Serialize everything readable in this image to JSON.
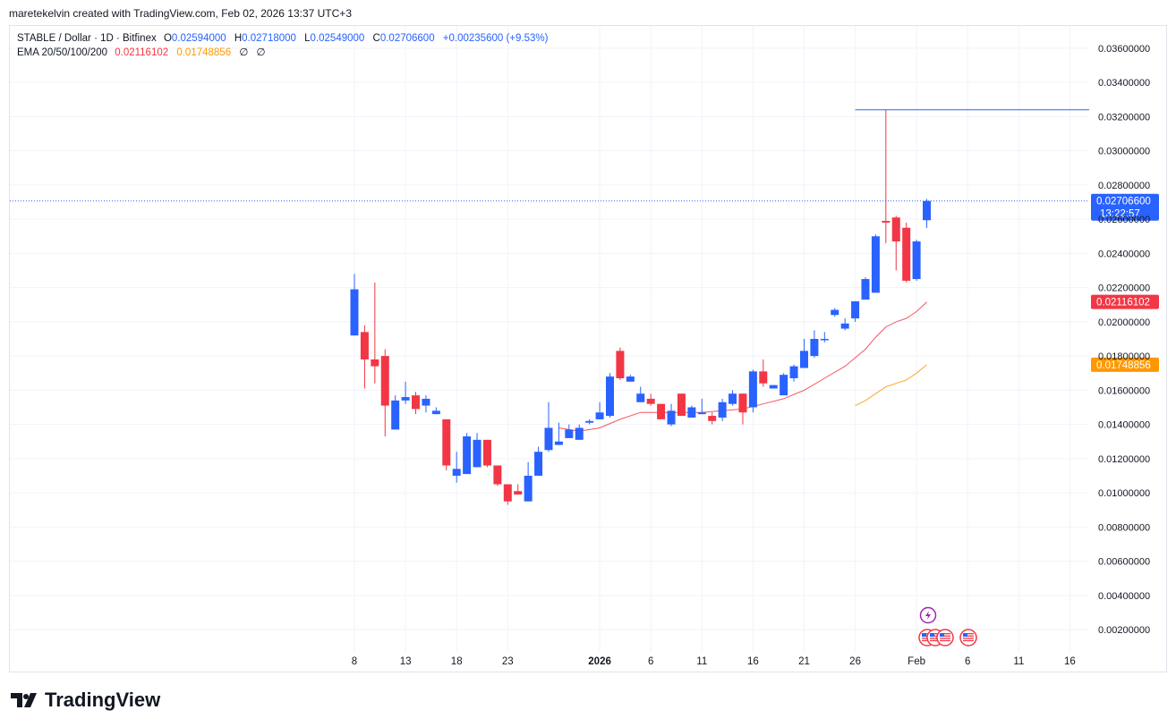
{
  "attribution": "maretekelvin created with TradingView.com, Feb 02, 2026 13:37 UTC+3",
  "legend": {
    "symbol": "STABLE / Dollar · 1D · Bitfinex",
    "o_label": "O",
    "o_value": "0.02594000",
    "h_label": "H",
    "h_value": "0.02718000",
    "l_label": "L",
    "l_value": "0.02549000",
    "c_label": "C",
    "c_value": "0.02706600",
    "change": "+0.00235600 (+9.53%)",
    "ema_label": "EMA 20/50/100/200",
    "ema20": "0.02116102",
    "ema50": "0.01748856",
    "ema100": "∅",
    "ema200": "∅"
  },
  "brand": {
    "name": "TradingView"
  },
  "colors": {
    "up": "#2962ff",
    "down": "#f23645",
    "ema20": "#f23645",
    "ema50": "#ff9800",
    "hline": "#2962ff",
    "grid": "#f0f3fa"
  },
  "price_label": {
    "value": "0.02706600",
    "countdown": "13:22:57"
  },
  "icons": [
    "lightning-event-icon",
    "us-flag-event-icon"
  ],
  "chart_data": {
    "type": "candlestick",
    "y_axis_ticks": [
      "0.03600000",
      "0.03400000",
      "0.03200000",
      "0.03000000",
      "0.02800000",
      "0.02600000",
      "0.02400000",
      "0.02200000",
      "0.02000000",
      "0.01800000",
      "0.01600000",
      "0.01400000",
      "0.01200000",
      "0.01000000",
      "0.00800000",
      "0.00600000",
      "0.00400000",
      "0.00200000"
    ],
    "ylim": [
      0.0007,
      0.0373
    ],
    "x_axis_ticks": [
      {
        "label": "8",
        "date": "2025-12-08"
      },
      {
        "label": "13",
        "date": "2025-12-13"
      },
      {
        "label": "18",
        "date": "2025-12-18"
      },
      {
        "label": "23",
        "date": "2025-12-23"
      },
      {
        "label": "2026",
        "date": "2026-01-01"
      },
      {
        "label": "6",
        "date": "2026-01-06"
      },
      {
        "label": "11",
        "date": "2026-01-11"
      },
      {
        "label": "16",
        "date": "2026-01-16"
      },
      {
        "label": "21",
        "date": "2026-01-21"
      },
      {
        "label": "26",
        "date": "2026-01-26"
      },
      {
        "label": "Feb",
        "date": "2026-02-01"
      },
      {
        "label": "6",
        "date": "2026-02-06"
      },
      {
        "label": "11",
        "date": "2026-02-11"
      },
      {
        "label": "16",
        "date": "2026-02-16"
      }
    ],
    "candles": [
      {
        "date": "2025-12-08",
        "o": 0.0192,
        "h": 0.0228,
        "l": 0.0192,
        "c": 0.0219
      },
      {
        "date": "2025-12-09",
        "o": 0.0194,
        "h": 0.0198,
        "l": 0.0161,
        "c": 0.0178
      },
      {
        "date": "2025-12-10",
        "o": 0.0178,
        "h": 0.0223,
        "l": 0.0164,
        "c": 0.0174
      },
      {
        "date": "2025-12-11",
        "o": 0.018,
        "h": 0.0184,
        "l": 0.0133,
        "c": 0.0151
      },
      {
        "date": "2025-12-12",
        "o": 0.0137,
        "h": 0.0157,
        "l": 0.0137,
        "c": 0.0154
      },
      {
        "date": "2025-12-13",
        "o": 0.0154,
        "h": 0.0165,
        "l": 0.0152,
        "c": 0.0156
      },
      {
        "date": "2025-12-14",
        "o": 0.0157,
        "h": 0.0159,
        "l": 0.0146,
        "c": 0.0149
      },
      {
        "date": "2025-12-15",
        "o": 0.0151,
        "h": 0.0157,
        "l": 0.0147,
        "c": 0.0155
      },
      {
        "date": "2025-12-16",
        "o": 0.0146,
        "h": 0.015,
        "l": 0.0146,
        "c": 0.0148
      },
      {
        "date": "2025-12-17",
        "o": 0.0143,
        "h": 0.0143,
        "l": 0.0113,
        "c": 0.0116
      },
      {
        "date": "2025-12-18",
        "o": 0.011,
        "h": 0.0124,
        "l": 0.0106,
        "c": 0.0114
      },
      {
        "date": "2025-12-19",
        "o": 0.0111,
        "h": 0.0135,
        "l": 0.0111,
        "c": 0.0133
      },
      {
        "date": "2025-12-20",
        "o": 0.0115,
        "h": 0.0135,
        "l": 0.0115,
        "c": 0.0131
      },
      {
        "date": "2025-12-21",
        "o": 0.0131,
        "h": 0.0131,
        "l": 0.0115,
        "c": 0.0116
      },
      {
        "date": "2025-12-22",
        "o": 0.0116,
        "h": 0.0116,
        "l": 0.0104,
        "c": 0.0105
      },
      {
        "date": "2025-12-23",
        "o": 0.0105,
        "h": 0.0105,
        "l": 0.0093,
        "c": 0.0095
      },
      {
        "date": "2025-12-24",
        "o": 0.0101,
        "h": 0.0105,
        "l": 0.01,
        "c": 0.0099
      },
      {
        "date": "2025-12-25",
        "o": 0.0095,
        "h": 0.0118,
        "l": 0.0095,
        "c": 0.011
      },
      {
        "date": "2025-12-26",
        "o": 0.011,
        "h": 0.0127,
        "l": 0.011,
        "c": 0.0124
      },
      {
        "date": "2025-12-27",
        "o": 0.0125,
        "h": 0.0153,
        "l": 0.0124,
        "c": 0.0138
      },
      {
        "date": "2025-12-28",
        "o": 0.0128,
        "h": 0.0141,
        "l": 0.0128,
        "c": 0.013
      },
      {
        "date": "2025-12-29",
        "o": 0.0132,
        "h": 0.014,
        "l": 0.0132,
        "c": 0.0137
      },
      {
        "date": "2025-12-30",
        "o": 0.0131,
        "h": 0.014,
        "l": 0.0131,
        "c": 0.0138
      },
      {
        "date": "2025-12-31",
        "o": 0.0141,
        "h": 0.0143,
        "l": 0.014,
        "c": 0.0142
      },
      {
        "date": "2026-01-01",
        "o": 0.0143,
        "h": 0.0153,
        "l": 0.0143,
        "c": 0.0147
      },
      {
        "date": "2026-01-02",
        "o": 0.0145,
        "h": 0.017,
        "l": 0.0144,
        "c": 0.0168
      },
      {
        "date": "2026-01-03",
        "o": 0.0183,
        "h": 0.0185,
        "l": 0.0166,
        "c": 0.0167
      },
      {
        "date": "2026-01-04",
        "o": 0.0165,
        "h": 0.0169,
        "l": 0.0165,
        "c": 0.0168
      },
      {
        "date": "2026-01-05",
        "o": 0.0153,
        "h": 0.0162,
        "l": 0.0153,
        "c": 0.0158
      },
      {
        "date": "2026-01-06",
        "o": 0.0155,
        "h": 0.0158,
        "l": 0.0151,
        "c": 0.0152
      },
      {
        "date": "2026-01-07",
        "o": 0.0152,
        "h": 0.0152,
        "l": 0.0143,
        "c": 0.0143
      },
      {
        "date": "2026-01-08",
        "o": 0.014,
        "h": 0.0152,
        "l": 0.0139,
        "c": 0.0148
      },
      {
        "date": "2026-01-09",
        "o": 0.0158,
        "h": 0.0158,
        "l": 0.0145,
        "c": 0.0145
      },
      {
        "date": "2026-01-10",
        "o": 0.0144,
        "h": 0.0151,
        "l": 0.0144,
        "c": 0.015
      },
      {
        "date": "2026-01-11",
        "o": 0.0146,
        "h": 0.0155,
        "l": 0.0146,
        "c": 0.0147
      },
      {
        "date": "2026-01-12",
        "o": 0.0145,
        "h": 0.0147,
        "l": 0.014,
        "c": 0.0142
      },
      {
        "date": "2026-01-13",
        "o": 0.0144,
        "h": 0.0155,
        "l": 0.0142,
        "c": 0.0153
      },
      {
        "date": "2026-01-14",
        "o": 0.0152,
        "h": 0.016,
        "l": 0.0151,
        "c": 0.0158
      },
      {
        "date": "2026-01-15",
        "o": 0.0158,
        "h": 0.0158,
        "l": 0.014,
        "c": 0.0147
      },
      {
        "date": "2026-01-16",
        "o": 0.015,
        "h": 0.0172,
        "l": 0.0147,
        "c": 0.0171
      },
      {
        "date": "2026-01-17",
        "o": 0.0171,
        "h": 0.0178,
        "l": 0.0162,
        "c": 0.0164
      },
      {
        "date": "2026-01-18",
        "o": 0.0161,
        "h": 0.0163,
        "l": 0.0161,
        "c": 0.0163
      },
      {
        "date": "2026-01-19",
        "o": 0.0157,
        "h": 0.017,
        "l": 0.0157,
        "c": 0.0169
      },
      {
        "date": "2026-01-20",
        "o": 0.0167,
        "h": 0.0175,
        "l": 0.0165,
        "c": 0.0174
      },
      {
        "date": "2026-01-21",
        "o": 0.0173,
        "h": 0.019,
        "l": 0.0173,
        "c": 0.0183
      },
      {
        "date": "2026-01-22",
        "o": 0.018,
        "h": 0.0195,
        "l": 0.0179,
        "c": 0.019
      },
      {
        "date": "2026-01-23",
        "o": 0.019,
        "h": 0.0194,
        "l": 0.0188,
        "c": 0.019
      },
      {
        "date": "2026-01-24",
        "o": 0.0204,
        "h": 0.0208,
        "l": 0.0203,
        "c": 0.0207
      },
      {
        "date": "2026-01-25",
        "o": 0.0196,
        "h": 0.0202,
        "l": 0.0195,
        "c": 0.0199
      },
      {
        "date": "2026-01-26",
        "o": 0.0202,
        "h": 0.0212,
        "l": 0.02,
        "c": 0.0212
      },
      {
        "date": "2026-01-27",
        "o": 0.0213,
        "h": 0.0226,
        "l": 0.0213,
        "c": 0.0225
      },
      {
        "date": "2026-01-28",
        "o": 0.0217,
        "h": 0.0251,
        "l": 0.0217,
        "c": 0.025
      },
      {
        "date": "2026-01-29",
        "o": 0.0259,
        "h": 0.0324,
        "l": 0.0246,
        "c": 0.0258
      },
      {
        "date": "2026-01-30",
        "o": 0.0261,
        "h": 0.0262,
        "l": 0.023,
        "c": 0.0247
      },
      {
        "date": "2026-01-31",
        "o": 0.0255,
        "h": 0.0258,
        "l": 0.0223,
        "c": 0.0224
      },
      {
        "date": "2026-02-01",
        "o": 0.0225,
        "h": 0.0248,
        "l": 0.0224,
        "c": 0.0247
      },
      {
        "date": "2026-02-02",
        "o": 0.02594,
        "h": 0.02718,
        "l": 0.02549,
        "c": 0.027066
      }
    ],
    "ema20": [
      {
        "date": "2025-12-28",
        "v": 0.0138
      },
      {
        "date": "2025-12-30",
        "v": 0.0136
      },
      {
        "date": "2026-01-01",
        "v": 0.0138
      },
      {
        "date": "2026-01-03",
        "v": 0.0143
      },
      {
        "date": "2026-01-05",
        "v": 0.0147
      },
      {
        "date": "2026-01-07",
        "v": 0.0147
      },
      {
        "date": "2026-01-09",
        "v": 0.0147
      },
      {
        "date": "2026-01-11",
        "v": 0.0147
      },
      {
        "date": "2026-01-13",
        "v": 0.0148
      },
      {
        "date": "2026-01-15",
        "v": 0.0149
      },
      {
        "date": "2026-01-17",
        "v": 0.0152
      },
      {
        "date": "2026-01-19",
        "v": 0.0155
      },
      {
        "date": "2026-01-21",
        "v": 0.016
      },
      {
        "date": "2026-01-23",
        "v": 0.0167
      },
      {
        "date": "2026-01-25",
        "v": 0.0174
      },
      {
        "date": "2026-01-27",
        "v": 0.0184
      },
      {
        "date": "2026-01-28",
        "v": 0.0191
      },
      {
        "date": "2026-01-29",
        "v": 0.0197
      },
      {
        "date": "2026-01-30",
        "v": 0.02
      },
      {
        "date": "2026-01-31",
        "v": 0.0202
      },
      {
        "date": "2026-02-01",
        "v": 0.0206
      },
      {
        "date": "2026-02-02",
        "v": 0.02116102
      }
    ],
    "ema50": [
      {
        "date": "2026-01-26",
        "v": 0.0151
      },
      {
        "date": "2026-01-27",
        "v": 0.0154
      },
      {
        "date": "2026-01-28",
        "v": 0.0158
      },
      {
        "date": "2026-01-29",
        "v": 0.0162
      },
      {
        "date": "2026-01-30",
        "v": 0.0164
      },
      {
        "date": "2026-01-31",
        "v": 0.0166
      },
      {
        "date": "2026-02-01",
        "v": 0.017
      },
      {
        "date": "2026-02-02",
        "v": 0.01748856
      }
    ],
    "hline": {
      "value": 0.0324,
      "from_date": "2026-01-26"
    },
    "last_price": 0.027066,
    "grid": true,
    "legend_position": "top-left"
  }
}
